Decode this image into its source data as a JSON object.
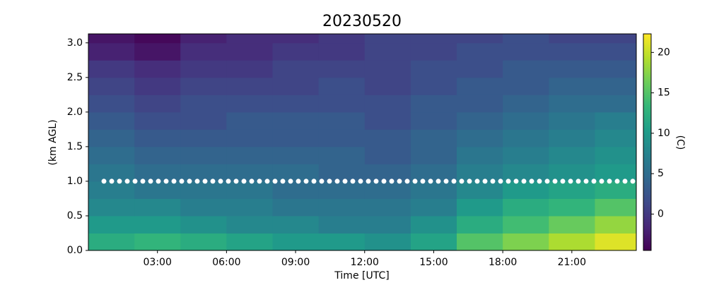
{
  "chart_data": {
    "type": "heatmap",
    "title": "20230520",
    "x_label": "Time [UTC]",
    "y_label": "(km AGL)",
    "colorbar_label": "(C)",
    "x_edges": [
      0,
      2,
      4,
      6,
      8,
      10,
      12,
      14,
      16,
      18,
      20,
      22,
      23.8
    ],
    "y_edges": [
      0,
      0.25,
      0.5,
      0.75,
      1.0,
      1.25,
      1.5,
      1.75,
      2.0,
      2.25,
      2.5,
      2.75,
      3.0,
      3.13
    ],
    "z": [
      [
        12,
        13,
        12,
        11,
        10,
        10,
        9,
        11,
        15,
        17,
        19,
        21
      ],
      [
        10,
        10,
        9,
        8,
        8,
        7,
        7,
        9,
        12,
        14,
        16,
        18
      ],
      [
        8,
        8,
        7,
        7,
        6,
        6,
        6,
        7,
        10,
        12,
        13,
        15
      ],
      [
        7,
        6,
        6,
        6,
        5,
        5,
        5,
        6,
        8,
        10,
        11,
        12
      ],
      [
        6,
        5,
        5,
        5,
        5,
        4,
        4,
        5,
        7,
        8,
        9,
        10
      ],
      [
        5,
        4,
        4,
        4,
        4,
        4,
        3,
        4,
        6,
        7,
        8,
        9
      ],
      [
        4,
        3,
        3,
        3,
        3,
        3,
        3,
        4,
        5,
        6,
        7,
        8
      ],
      [
        3,
        2,
        2,
        3,
        3,
        3,
        2,
        3,
        4,
        5,
        6,
        7
      ],
      [
        2,
        1,
        2,
        2,
        2,
        2,
        2,
        3,
        3,
        4,
        5,
        5
      ],
      [
        1,
        0,
        1,
        1,
        1,
        2,
        1,
        2,
        3,
        3,
        4,
        4
      ],
      [
        0,
        -1,
        0,
        0,
        1,
        1,
        1,
        2,
        2,
        3,
        3,
        3
      ],
      [
        -2,
        -3,
        -1,
        -1,
        0,
        0,
        1,
        1,
        2,
        2,
        2,
        2
      ],
      [
        -3,
        -4,
        -2,
        -1,
        -1,
        0,
        1,
        1,
        1,
        2,
        1,
        1
      ]
    ],
    "xlim": [
      0,
      23.8
    ],
    "ylim": [
      0,
      3.13
    ],
    "clim": [
      -4.5,
      22.3
    ],
    "xticks": [
      {
        "value": 3,
        "label": "03:00"
      },
      {
        "value": 6,
        "label": "06:00"
      },
      {
        "value": 9,
        "label": "09:00"
      },
      {
        "value": 12,
        "label": "12:00"
      },
      {
        "value": 15,
        "label": "15:00"
      },
      {
        "value": 18,
        "label": "18:00"
      },
      {
        "value": 21,
        "label": "21:00"
      }
    ],
    "yticks": [
      {
        "value": 0,
        "label": "0.0"
      },
      0.5,
      {
        "value": 1,
        "label": "1.0"
      },
      1.5,
      {
        "value": 2,
        "label": "2.0"
      },
      2.5,
      {
        "value": 3,
        "label": "3.0"
      }
    ],
    "cticks": [
      0,
      5,
      10,
      15,
      20
    ],
    "markers": {
      "y": 1.0,
      "color": "#ffffff"
    }
  }
}
